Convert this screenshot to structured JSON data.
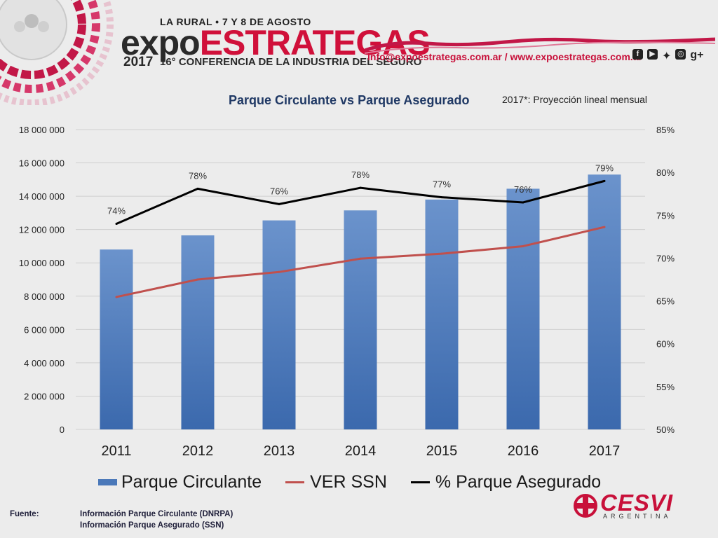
{
  "header": {
    "event_dates": "LA RURAL • 7 Y 8 DE AGOSTO",
    "title_part1": "expo",
    "title_part2": "ESTRATEGAS",
    "year": "2017",
    "subtitle": "16° CONFERENCIA DE LA INDUSTRIA DEL SEGURO",
    "contact": "info@expoestrategas.com.ar / www.expoestrategas.com.ar",
    "social_icons": [
      "facebook-icon",
      "youtube-icon",
      "twitter-icon",
      "instagram-icon",
      "google-plus-icon"
    ],
    "social_gplus": "g+"
  },
  "chart_title": "Parque Circulante vs Parque Asegurado",
  "chart_note": "2017*: Proyección lineal mensual",
  "chart_data": {
    "type": "bar",
    "categories": [
      "2011",
      "2012",
      "2013",
      "2014",
      "2015",
      "2016",
      "2017"
    ],
    "series": [
      {
        "name": "Parque Circulante",
        "type": "bar",
        "axis": "left",
        "color": "#4a78b9",
        "values": [
          10800000,
          11650000,
          12550000,
          13150000,
          13800000,
          14450000,
          15300000
        ]
      },
      {
        "name": "VER SSN",
        "type": "line",
        "axis": "left",
        "color": "#c0504d",
        "values": [
          7950000,
          9000000,
          9450000,
          10250000,
          10550000,
          11000000,
          12150000
        ]
      },
      {
        "name": "% Parque Asegurado",
        "type": "line",
        "axis": "right",
        "color": "#000000",
        "values": [
          74.0,
          78.1,
          76.3,
          78.2,
          77.1,
          76.5,
          79.0
        ],
        "labels": [
          "74%",
          "78%",
          "76%",
          "78%",
          "77%",
          "76%",
          "79%"
        ]
      }
    ],
    "y_left": {
      "min": 0,
      "max": 18000000,
      "step": 2000000,
      "ticks": [
        "0",
        "2 000 000",
        "4 000 000",
        "6 000 000",
        "8 000 000",
        "10 000 000",
        "12 000 000",
        "14 000 000",
        "16 000 000",
        "18 000 000"
      ]
    },
    "y_right": {
      "min": 50,
      "max": 85,
      "step": 5,
      "ticks": [
        "50%",
        "55%",
        "60%",
        "65%",
        "70%",
        "75%",
        "80%",
        "85%"
      ]
    },
    "grid": true,
    "legend_position": "bottom"
  },
  "footer": {
    "label": "Fuente:",
    "source1": "Información Parque Circulante (DNRPA)",
    "source2": "Información Parque Asegurado (SSN)"
  },
  "logo": {
    "brand": "CESVI",
    "sub": "ARGENTINA"
  }
}
